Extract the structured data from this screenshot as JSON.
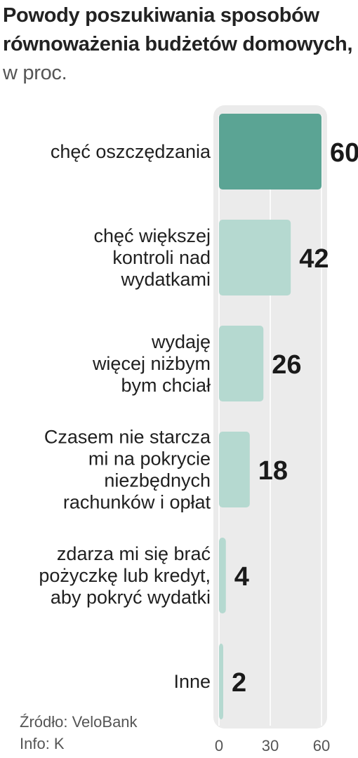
{
  "chart_data": {
    "type": "bar",
    "orientation": "horizontal",
    "title_bold": "Powody poszukiwania sposobów równoważenia budżetów domowych,",
    "title_suffix": "w proc.",
    "categories": [
      [
        "chęć oszczędzania"
      ],
      [
        "chęć większej",
        "kontroli nad",
        "wydatkami"
      ],
      [
        "wydaję",
        "więcej niżbym",
        "bym chciał"
      ],
      [
        "Czasem nie starcza",
        "mi na pokrycie",
        "niezbędnych",
        "rachunków i opłat"
      ],
      [
        "zdarza mi się brać",
        "pożyczkę lub kredyt,",
        "aby pokryć wydatki"
      ],
      [
        "Inne"
      ]
    ],
    "values": [
      60,
      42,
      26,
      18,
      4,
      2
    ],
    "xlim": [
      0,
      60
    ],
    "xticks": [
      "0",
      "30",
      "60"
    ],
    "grid": true,
    "colors": {
      "highlight": "#5ba494",
      "normal": "#b5d9d0",
      "panel": "#ebebeb",
      "gridline": "#ffffff"
    }
  },
  "footer": {
    "source": "Źródło: VeloBank",
    "info": "Info: K"
  }
}
